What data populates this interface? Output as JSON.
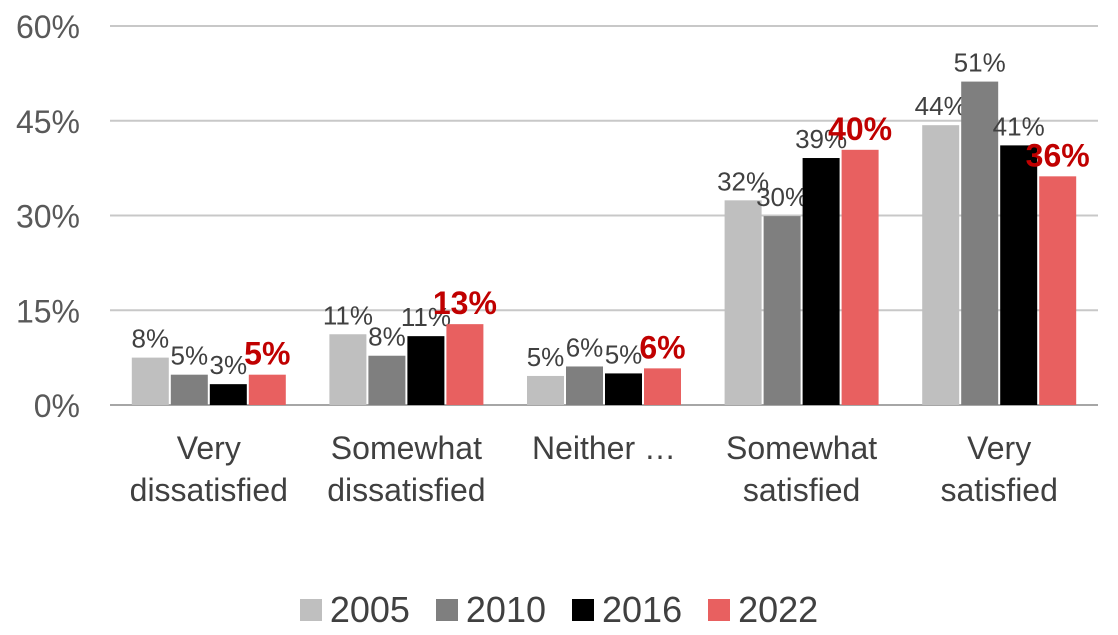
{
  "chart_data": {
    "type": "bar",
    "categories": [
      [
        "Very",
        "dissatisfied"
      ],
      [
        "Somewhat",
        "dissatisfied"
      ],
      [
        "Neither …"
      ],
      [
        "Somewhat",
        "satisfied"
      ],
      [
        "Very",
        "satisfied"
      ]
    ],
    "ylim": [
      0,
      60
    ],
    "yticks": [
      0,
      15,
      30,
      45,
      60
    ],
    "ytick_labels": [
      "0%",
      "15%",
      "30%",
      "45%",
      "60%"
    ],
    "grid": true,
    "legend_position": "bottom",
    "series": [
      {
        "name": "2005",
        "color": "#bfbfbf",
        "values": [
          7.5,
          11.2,
          4.6,
          32.4,
          44.3
        ],
        "labels": [
          "8%",
          "11%",
          "5%",
          "32%",
          "44%"
        ]
      },
      {
        "name": "2010",
        "color": "#7f7f7f",
        "values": [
          4.8,
          7.8,
          6.1,
          29.9,
          51.2
        ],
        "labels": [
          "5%",
          "8%",
          "6%",
          "30%",
          "51%"
        ]
      },
      {
        "name": "2016",
        "color": "#000000",
        "values": [
          3.3,
          10.9,
          5.0,
          39.1,
          41.1
        ],
        "labels": [
          "3%",
          "11%",
          "5%",
          "39%",
          "41%"
        ]
      },
      {
        "name": "2022",
        "color": "#e86060",
        "values": [
          4.8,
          12.8,
          5.8,
          40.4,
          36.2
        ],
        "labels": [
          "5%",
          "13%",
          "6%",
          "40%",
          "36%"
        ],
        "label_color": "#c00000",
        "label_bold": true
      }
    ]
  }
}
